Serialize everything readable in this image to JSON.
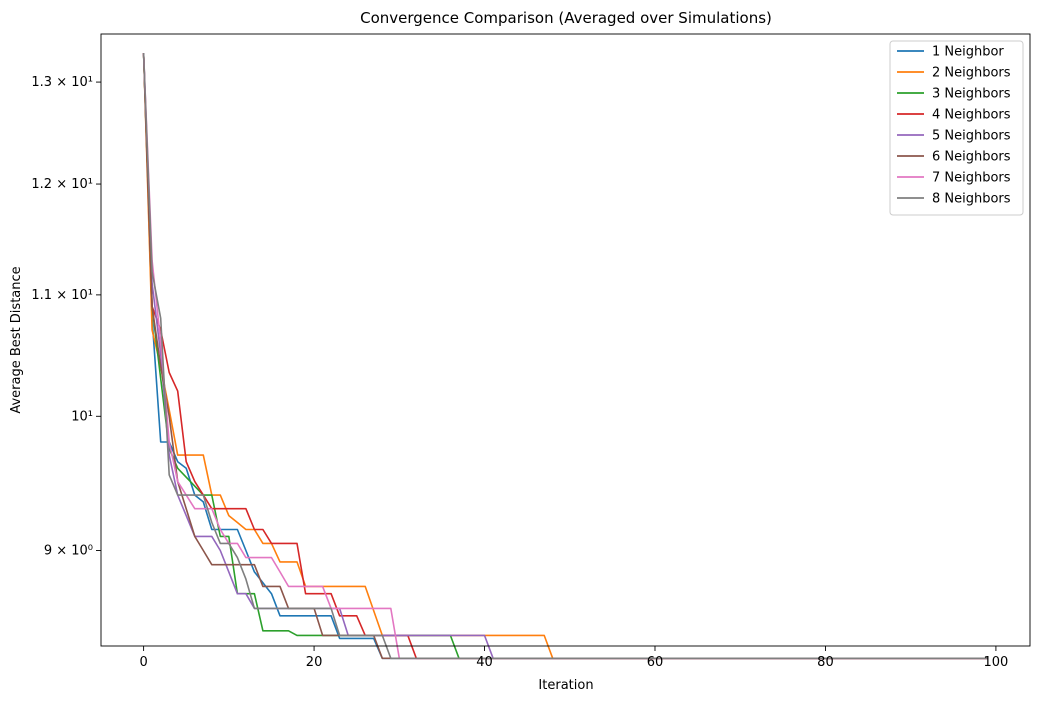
{
  "chart_data": {
    "type": "line",
    "title": "Convergence Comparison (Averaged over Simulations)",
    "xlabel": "Iteration",
    "ylabel": "Average Best Distance",
    "yscale": "log",
    "xlim": [
      -5,
      104
    ],
    "ylim": [
      8.35,
      13.5
    ],
    "xticks": [
      0,
      20,
      40,
      60,
      80,
      100
    ],
    "xtick_labels": [
      "0",
      "20",
      "40",
      "60",
      "80",
      "100"
    ],
    "yticks": [
      9,
      10,
      11,
      12,
      13
    ],
    "ytick_labels": [
      "9 × 10⁰",
      "10¹",
      "1.1 × 10¹",
      "1.2 × 10¹",
      "1.3 × 10¹"
    ],
    "legend_position": "top-right",
    "series": [
      {
        "name": "1 Neighbor",
        "color": "#1f77b4",
        "points": [
          [
            0,
            13.3
          ],
          [
            1,
            10.8
          ],
          [
            2,
            9.8
          ],
          [
            3,
            9.8
          ],
          [
            4,
            9.65
          ],
          [
            5,
            9.6
          ],
          [
            6,
            9.4
          ],
          [
            7,
            9.35
          ],
          [
            8,
            9.15
          ],
          [
            11,
            9.15
          ],
          [
            12,
            9.0
          ],
          [
            13,
            8.85
          ],
          [
            15,
            8.7
          ],
          [
            16,
            8.55
          ],
          [
            22,
            8.55
          ],
          [
            23,
            8.4
          ],
          [
            27,
            8.4
          ],
          [
            28,
            8.27
          ],
          [
            99,
            8.27
          ]
        ]
      },
      {
        "name": "2 Neighbors",
        "color": "#ff7f0e",
        "points": [
          [
            0,
            13.3
          ],
          [
            1,
            10.7
          ],
          [
            2,
            10.4
          ],
          [
            3,
            10.05
          ],
          [
            4,
            9.7
          ],
          [
            7,
            9.7
          ],
          [
            8,
            9.4
          ],
          [
            9,
            9.4
          ],
          [
            10,
            9.25
          ],
          [
            11,
            9.2
          ],
          [
            12,
            9.15
          ],
          [
            13,
            9.15
          ],
          [
            14,
            9.05
          ],
          [
            15,
            9.05
          ],
          [
            16,
            8.92
          ],
          [
            18,
            8.92
          ],
          [
            19,
            8.75
          ],
          [
            26,
            8.75
          ],
          [
            28,
            8.42
          ],
          [
            47,
            8.42
          ],
          [
            48,
            8.27
          ],
          [
            99,
            8.27
          ]
        ]
      },
      {
        "name": "3 Neighbors",
        "color": "#2ca02c",
        "points": [
          [
            0,
            13.3
          ],
          [
            1,
            10.9
          ],
          [
            2,
            10.3
          ],
          [
            3,
            9.75
          ],
          [
            4,
            9.6
          ],
          [
            7,
            9.4
          ],
          [
            8,
            9.4
          ],
          [
            9,
            9.1
          ],
          [
            10,
            9.1
          ],
          [
            11,
            8.7
          ],
          [
            13,
            8.7
          ],
          [
            14,
            8.45
          ],
          [
            17,
            8.45
          ],
          [
            18,
            8.42
          ],
          [
            36,
            8.42
          ],
          [
            37,
            8.27
          ],
          [
            99,
            8.27
          ]
        ]
      },
      {
        "name": "4 Neighbors",
        "color": "#d62728",
        "points": [
          [
            0,
            13.3
          ],
          [
            1,
            10.9
          ],
          [
            2,
            10.7
          ],
          [
            3,
            10.35
          ],
          [
            4,
            10.2
          ],
          [
            5,
            9.65
          ],
          [
            6,
            9.5
          ],
          [
            7,
            9.4
          ],
          [
            8,
            9.3
          ],
          [
            12,
            9.3
          ],
          [
            13,
            9.15
          ],
          [
            14,
            9.15
          ],
          [
            15,
            9.05
          ],
          [
            18,
            9.05
          ],
          [
            19,
            8.7
          ],
          [
            22,
            8.7
          ],
          [
            23,
            8.55
          ],
          [
            25,
            8.55
          ],
          [
            26,
            8.42
          ],
          [
            31,
            8.42
          ],
          [
            32,
            8.27
          ],
          [
            99,
            8.27
          ]
        ]
      },
      {
        "name": "5 Neighbors",
        "color": "#9467bd",
        "points": [
          [
            0,
            13.3
          ],
          [
            1,
            11.1
          ],
          [
            2,
            10.5
          ],
          [
            3,
            9.7
          ],
          [
            4,
            9.4
          ],
          [
            5,
            9.25
          ],
          [
            6,
            9.1
          ],
          [
            8,
            9.1
          ],
          [
            9,
            9.0
          ],
          [
            10,
            8.85
          ],
          [
            11,
            8.7
          ],
          [
            12,
            8.7
          ],
          [
            13,
            8.6
          ],
          [
            23,
            8.6
          ],
          [
            24,
            8.42
          ],
          [
            40,
            8.42
          ],
          [
            41,
            8.27
          ],
          [
            99,
            8.27
          ]
        ]
      },
      {
        "name": "6 Neighbors",
        "color": "#8c564b",
        "points": [
          [
            0,
            13.3
          ],
          [
            1,
            10.9
          ],
          [
            2,
            10.4
          ],
          [
            3,
            10.0
          ],
          [
            4,
            9.5
          ],
          [
            5,
            9.3
          ],
          [
            6,
            9.1
          ],
          [
            7,
            9.0
          ],
          [
            8,
            8.9
          ],
          [
            13,
            8.9
          ],
          [
            14,
            8.75
          ],
          [
            16,
            8.75
          ],
          [
            17,
            8.6
          ],
          [
            20,
            8.6
          ],
          [
            21,
            8.42
          ],
          [
            27,
            8.42
          ],
          [
            28,
            8.27
          ],
          [
            99,
            8.27
          ]
        ]
      },
      {
        "name": "7 Neighbors",
        "color": "#e377c2",
        "points": [
          [
            0,
            13.3
          ],
          [
            1,
            11.3
          ],
          [
            2,
            10.6
          ],
          [
            3,
            9.8
          ],
          [
            4,
            9.5
          ],
          [
            5,
            9.4
          ],
          [
            6,
            9.3
          ],
          [
            8,
            9.3
          ],
          [
            9,
            9.15
          ],
          [
            10,
            9.05
          ],
          [
            11,
            9.05
          ],
          [
            12,
            8.95
          ],
          [
            15,
            8.95
          ],
          [
            16,
            8.85
          ],
          [
            17,
            8.75
          ],
          [
            21,
            8.75
          ],
          [
            22,
            8.6
          ],
          [
            29,
            8.6
          ],
          [
            30,
            8.27
          ],
          [
            99,
            8.27
          ]
        ]
      },
      {
        "name": "8 Neighbors",
        "color": "#7f7f7f",
        "points": [
          [
            0,
            13.3
          ],
          [
            1,
            11.2
          ],
          [
            2,
            10.8
          ],
          [
            3,
            9.55
          ],
          [
            4,
            9.4
          ],
          [
            7,
            9.4
          ],
          [
            8,
            9.2
          ],
          [
            9,
            9.05
          ],
          [
            10,
            9.05
          ],
          [
            11,
            8.95
          ],
          [
            12,
            8.8
          ],
          [
            13,
            8.6
          ],
          [
            14,
            8.6
          ],
          [
            22,
            8.6
          ],
          [
            23,
            8.42
          ],
          [
            28,
            8.42
          ],
          [
            29,
            8.27
          ],
          [
            99,
            8.27
          ]
        ]
      }
    ]
  }
}
